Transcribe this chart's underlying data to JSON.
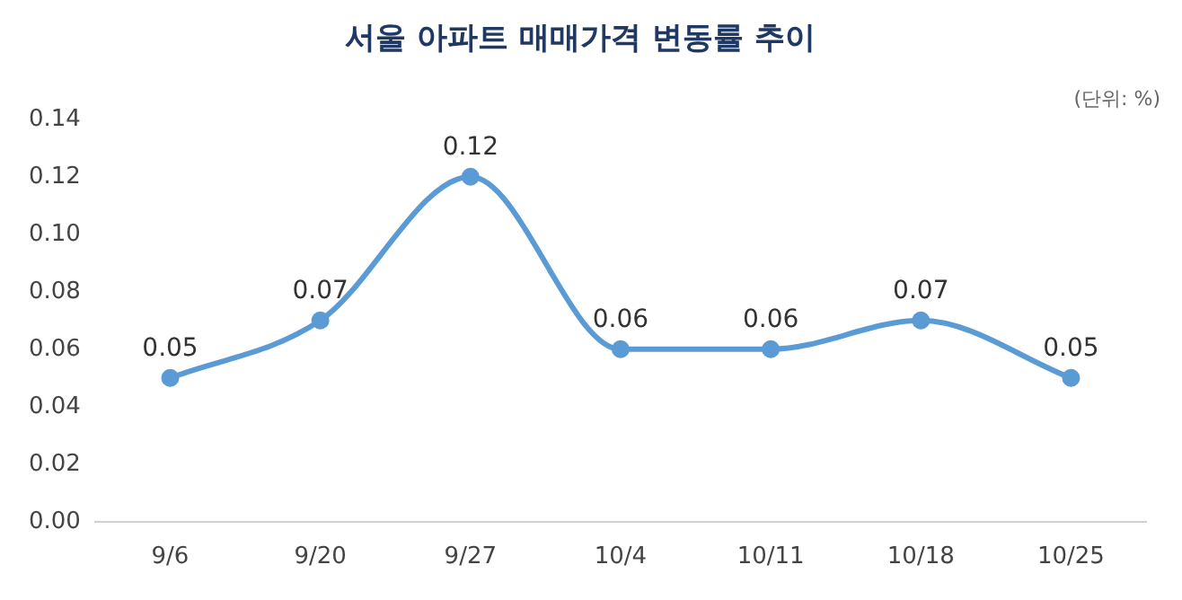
{
  "chart_data": {
    "type": "line",
    "title": "서울 아파트 매매가격 변동률 추이",
    "annotations": [
      "(단위: %)"
    ],
    "categories": [
      "9/6",
      "9/20",
      "9/27",
      "10/4",
      "10/11",
      "10/18",
      "10/25"
    ],
    "series": [
      {
        "color": "#5b9bd5",
        "values": [
          0.05,
          0.07,
          0.12,
          0.06,
          0.06,
          0.07,
          0.05
        ]
      }
    ],
    "ylim": [
      0,
      0.14
    ],
    "yticks": [
      {
        "value": 0,
        "label": "0.00"
      },
      {
        "value": 0.02,
        "label": "0.02"
      },
      {
        "value": 0.04,
        "label": "0.04"
      },
      {
        "value": 0.06,
        "label": "0.06"
      },
      {
        "value": 0.08,
        "label": "0.08"
      },
      {
        "value": 0.1,
        "label": "0.10"
      },
      {
        "value": 0.12,
        "label": "0.12"
      },
      {
        "value": 0.14,
        "label": "0.14"
      }
    ],
    "grid": false,
    "legend": false,
    "marker": "circle",
    "line_style": "solid",
    "data_labels": true
  }
}
